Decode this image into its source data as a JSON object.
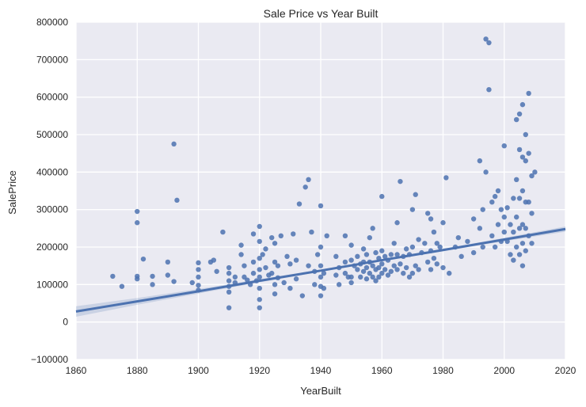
{
  "chart_data": {
    "type": "scatter",
    "title": "Sale Price vs Year Built",
    "xlabel": "YearBuilt",
    "ylabel": "SalePrice",
    "xlim": [
      1860,
      2020
    ],
    "ylim": [
      -100000,
      800000
    ],
    "xticks": [
      1860,
      1880,
      1900,
      1920,
      1940,
      1960,
      1980,
      2000,
      2020
    ],
    "yticks": [
      -100000,
      0,
      100000,
      200000,
      300000,
      400000,
      500000,
      600000,
      700000,
      800000
    ],
    "grid": true,
    "colors": {
      "background": "#EAEAF2",
      "grid": "#FFFFFF",
      "points": "#4C72B0",
      "line": "#4C72B0",
      "band": "#4C72B0"
    },
    "regression": {
      "x": [
        1860,
        1880,
        1900,
        1920,
        1940,
        1960,
        1980,
        2000,
        2020
      ],
      "y": [
        28000,
        55000,
        82000,
        110000,
        137000,
        165000,
        192000,
        220000,
        248000
      ],
      "ci_half_width": [
        14000,
        9000,
        6000,
        4000,
        3000,
        2500,
        3000,
        4500,
        7000
      ]
    },
    "series": [
      {
        "x": [
          1872,
          1875,
          1880,
          1880,
          1880,
          1880,
          1882,
          1885,
          1885,
          1890,
          1890,
          1892,
          1893,
          1892,
          1898,
          1900,
          1900,
          1900,
          1900,
          1900,
          1904,
          1905,
          1906,
          1908,
          1910,
          1910,
          1910,
          1910,
          1910,
          1910,
          1912,
          1912,
          1914,
          1914,
          1915,
          1915,
          1916,
          1917,
          1918,
          1918,
          1918,
          1919,
          1920,
          1920,
          1920,
          1920,
          1920,
          1920,
          1920,
          1920,
          1921,
          1922,
          1922,
          1923,
          1924,
          1924,
          1925,
          1925,
          1925,
          1925,
          1926,
          1926,
          1927,
          1928,
          1929,
          1930,
          1930,
          1931,
          1932,
          1932,
          1933,
          1934,
          1935,
          1936,
          1936,
          1937,
          1938,
          1938,
          1939,
          1940,
          1940,
          1940,
          1940,
          1940,
          1940,
          1941,
          1941,
          1942,
          1945,
          1945,
          1946,
          1946,
          1948,
          1948,
          1948,
          1949,
          1950,
          1950,
          1950,
          1950,
          1951,
          1952,
          1952,
          1953,
          1953,
          1954,
          1954,
          1954,
          1955,
          1955,
          1955,
          1956,
          1956,
          1956,
          1957,
          1957,
          1957,
          1958,
          1958,
          1958,
          1959,
          1959,
          1959,
          1960,
          1960,
          1960,
          1960,
          1961,
          1961,
          1962,
          1962,
          1963,
          1963,
          1964,
          1964,
          1965,
          1965,
          1965,
          1966,
          1966,
          1967,
          1967,
          1968,
          1968,
          1969,
          1969,
          1970,
          1970,
          1970,
          1971,
          1971,
          1972,
          1972,
          1973,
          1974,
          1975,
          1975,
          1976,
          1976,
          1976,
          1977,
          1977,
          1978,
          1978,
          1979,
          1980,
          1980,
          1981,
          1982,
          1984,
          1985,
          1986,
          1988,
          1990,
          1990,
          1992,
          1992,
          1993,
          1993,
          1994,
          1994,
          1995,
          1995,
          1996,
          1996,
          1997,
          1997,
          1998,
          1998,
          1999,
          1999,
          2000,
          2000,
          2000,
          2001,
          2001,
          2002,
          2002,
          2003,
          2003,
          2003,
          2004,
          2004,
          2004,
          2004,
          2005,
          2005,
          2005,
          2005,
          2005,
          2006,
          2006,
          2006,
          2006,
          2006,
          2006,
          2007,
          2007,
          2007,
          2007,
          2007,
          2008,
          2008,
          2008,
          2008,
          2009,
          2009,
          2009,
          2010
        ],
        "y": [
          122000,
          95000,
          295000,
          265000,
          122000,
          115000,
          168000,
          122000,
          100000,
          160000,
          125000,
          475000,
          325000,
          108000,
          105000,
          158000,
          140000,
          120000,
          98000,
          85000,
          160000,
          165000,
          135000,
          240000,
          145000,
          130000,
          110000,
          95000,
          80000,
          38000,
          120000,
          105000,
          205000,
          180000,
          150000,
          120000,
          112000,
          100000,
          235000,
          160000,
          130000,
          110000,
          255000,
          215000,
          170000,
          140000,
          120000,
          90000,
          60000,
          38000,
          180000,
          195000,
          145000,
          125000,
          225000,
          130000,
          210000,
          160000,
          100000,
          75000,
          150000,
          118000,
          230000,
          105000,
          175000,
          155000,
          90000,
          235000,
          165000,
          115000,
          315000,
          70000,
          360000,
          380000,
          150000,
          240000,
          135000,
          100000,
          180000,
          310000,
          200000,
          150000,
          120000,
          95000,
          70000,
          130000,
          90000,
          230000,
          175000,
          125000,
          145000,
          100000,
          230000,
          160000,
          130000,
          120000,
          205000,
          165000,
          120000,
          105000,
          150000,
          175000,
          140000,
          155000,
          120000,
          195000,
          160000,
          135000,
          180000,
          145000,
          115000,
          225000,
          160000,
          130000,
          250000,
          150000,
          120000,
          185000,
          140000,
          110000,
          170000,
          145000,
          120000,
          335000,
          190000,
          155000,
          130000,
          175000,
          140000,
          165000,
          125000,
          180000,
          135000,
          210000,
          150000,
          265000,
          180000,
          140000,
          375000,
          155000,
          175000,
          130000,
          195000,
          145000,
          180000,
          120000,
          300000,
          200000,
          130000,
          340000,
          150000,
          220000,
          140000,
          185000,
          210000,
          290000,
          160000,
          275000,
          190000,
          140000,
          240000,
          170000,
          210000,
          155000,
          200000,
          265000,
          145000,
          385000,
          130000,
          200000,
          225000,
          175000,
          215000,
          275000,
          185000,
          430000,
          250000,
          300000,
          200000,
          755000,
          400000,
          745000,
          620000,
          320000,
          230000,
          335000,
          200000,
          350000,
          260000,
          300000,
          215000,
          470000,
          280000,
          240000,
          305000,
          215000,
          260000,
          180000,
          330000,
          240000,
          165000,
          540000,
          380000,
          280000,
          200000,
          555000,
          460000,
          330000,
          250000,
          180000,
          580000,
          440000,
          350000,
          260000,
          210000,
          150000,
          500000,
          430000,
          320000,
          250000,
          190000,
          610000,
          450000,
          320000,
          230000,
          390000,
          290000,
          210000,
          400000
        ]
      }
    ]
  }
}
